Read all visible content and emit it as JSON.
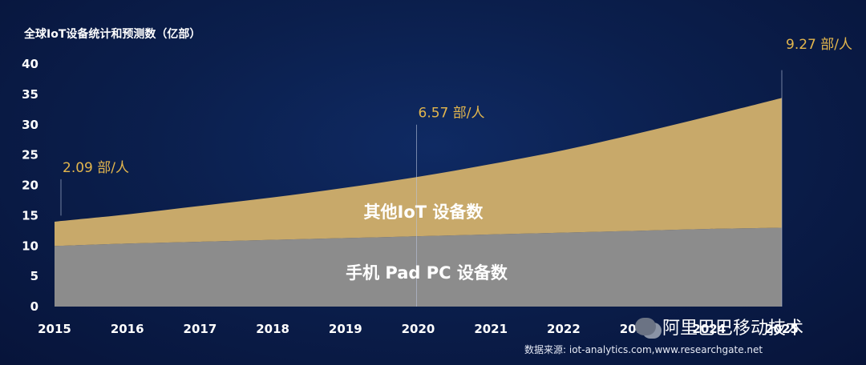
{
  "chart_data": {
    "type": "area",
    "title": "全球IoT设备统计和预测数（亿部）",
    "x": [
      2015,
      2016,
      2017,
      2018,
      2019,
      2020,
      2021,
      2022,
      2023,
      2024,
      2025
    ],
    "x_tick_labels": [
      "2015",
      "2016",
      "2017",
      "2018",
      "2019",
      "2020",
      "2021",
      "2022",
      "2023",
      "2024",
      "2025"
    ],
    "ylim": [
      0,
      40
    ],
    "y_ticks": [
      0,
      5,
      10,
      15,
      20,
      25,
      30,
      35,
      40
    ],
    "series": [
      {
        "name": "手机 Pad PC 设备数",
        "color": "#8c8c8c",
        "values": [
          10.0,
          10.4,
          10.7,
          11.0,
          11.3,
          11.6,
          11.9,
          12.2,
          12.5,
          12.8,
          13.0
        ]
      },
      {
        "name": "其他IoT 设备数",
        "color": "#c8a96a",
        "values": [
          4.0,
          4.8,
          5.9,
          7.0,
          8.3,
          9.8,
          11.6,
          13.6,
          16.0,
          18.6,
          21.4
        ]
      }
    ],
    "annotations": [
      {
        "x": 2015,
        "text": "2.09 部/人",
        "line_top": 21,
        "label_y": 22.2
      },
      {
        "x": 2020,
        "text": "6.57 部/人",
        "line_top": 30,
        "label_y": 31.2
      },
      {
        "x": 2025,
        "text": "9.27 部/人",
        "line_top": 39,
        "label_y": 42.5
      }
    ],
    "annotation_color": "#e3b64d"
  },
  "source_text": "数据来源: iot-analytics.com,www.researchgate.net",
  "watermark_text": "阿里巴巴移动技术"
}
